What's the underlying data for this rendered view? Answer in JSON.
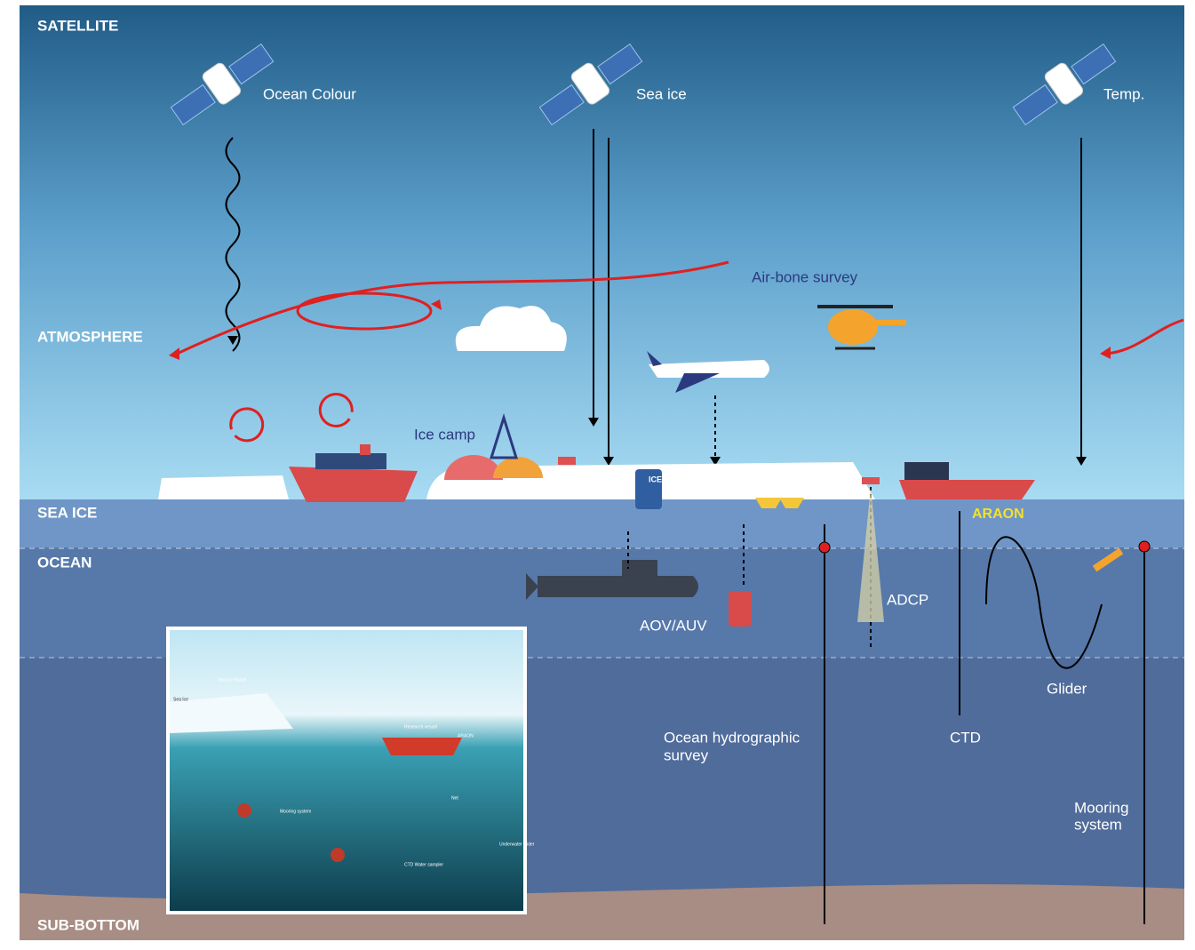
{
  "layers": [
    "SATELLITE",
    "ATMOSPHERE",
    "SEA ICE",
    "OCEAN",
    "SUB-BOTTOM"
  ],
  "satellites": [
    "Ocean Colour",
    "Sea ice",
    "Temp."
  ],
  "airborne_survey": "Air-bone survey",
  "ice_camp": "Ice camp",
  "buoy_label": "ICEX",
  "vessel": "ARAON",
  "instruments": {
    "aov_auv": "AOV/AUV",
    "adcp": "ADCP",
    "glider": "Glider",
    "ctd": "CTD",
    "hydrographic": [
      "Ocean hydrographic",
      "survey"
    ],
    "mooring": [
      "Mooring",
      "system"
    ]
  },
  "inset": {
    "labels": [
      "Sea-ice Buoys",
      "Sea Ice",
      "Research vessel",
      "ARAON",
      "Mooring system",
      "Net",
      "Underwater glider",
      "CTD Water sampler"
    ]
  }
}
